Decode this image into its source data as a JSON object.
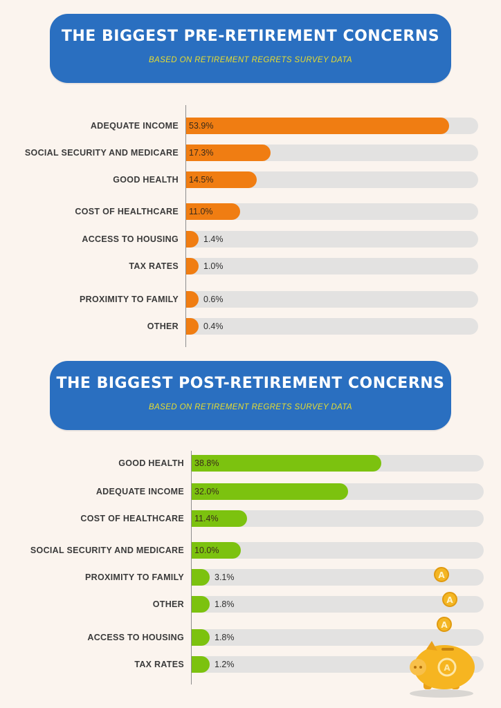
{
  "pre": {
    "title": "The Biggest Pre-Retirement Concerns",
    "subtitle": "Based on Retirement Regrets Survey Data"
  },
  "post": {
    "title": "The Biggest Post-Retirement Concerns",
    "subtitle": "Based on Retirement Regrets Survey Data"
  },
  "chart_data": [
    {
      "type": "bar",
      "orientation": "horizontal",
      "title": "The Biggest Pre-Retirement Concerns",
      "subtitle": "Based on Retirement Regrets Survey Data",
      "color": "#f07d12",
      "track_color": "#e3e2e1",
      "xlim": [
        0,
        60
      ],
      "grid": false,
      "categories": [
        "ADEQUATE INCOME",
        "SOCIAL SECURITY AND MEDICARE",
        "GOOD HEALTH",
        "COST OF HEALTHCARE",
        "ACCESS TO HOUSING",
        "TAX RATES",
        "PROXIMITY TO FAMILY",
        "OTHER"
      ],
      "values": [
        53.9,
        17.3,
        14.5,
        11.0,
        1.4,
        1.0,
        0.6,
        0.4
      ],
      "value_labels": [
        "53.9%",
        "17.3%",
        "14.5%",
        "11.0%",
        "1.4%",
        "1.0%",
        "0.6%",
        "0.4%"
      ]
    },
    {
      "type": "bar",
      "orientation": "horizontal",
      "title": "The Biggest Post-Retirement Concerns",
      "subtitle": "Based on Retirement Regrets Survey Data",
      "color": "#7cc20f",
      "track_color": "#e3e2e1",
      "xlim": [
        0,
        60
      ],
      "grid": false,
      "categories": [
        "GOOD HEALTH",
        "ADEQUATE INCOME",
        "COST OF HEALTHCARE",
        "SOCIAL SECURITY AND MEDICARE",
        "PROXIMITY TO FAMILY",
        "OTHER",
        "ACCESS TO HOUSING",
        "TAX RATES"
      ],
      "values": [
        38.8,
        32.0,
        11.4,
        10.0,
        3.1,
        1.8,
        1.8,
        1.2
      ],
      "value_labels": [
        "38.8%",
        "32.0%",
        "11.4%",
        "10.0%",
        "3.1%",
        "1.8%",
        "1.8%",
        "1.2%"
      ]
    }
  ],
  "decoration": {
    "icon": "piggy-bank-with-falling-coins-icon",
    "coin_color": "#f4b623",
    "pig_color": "#f6b521"
  }
}
